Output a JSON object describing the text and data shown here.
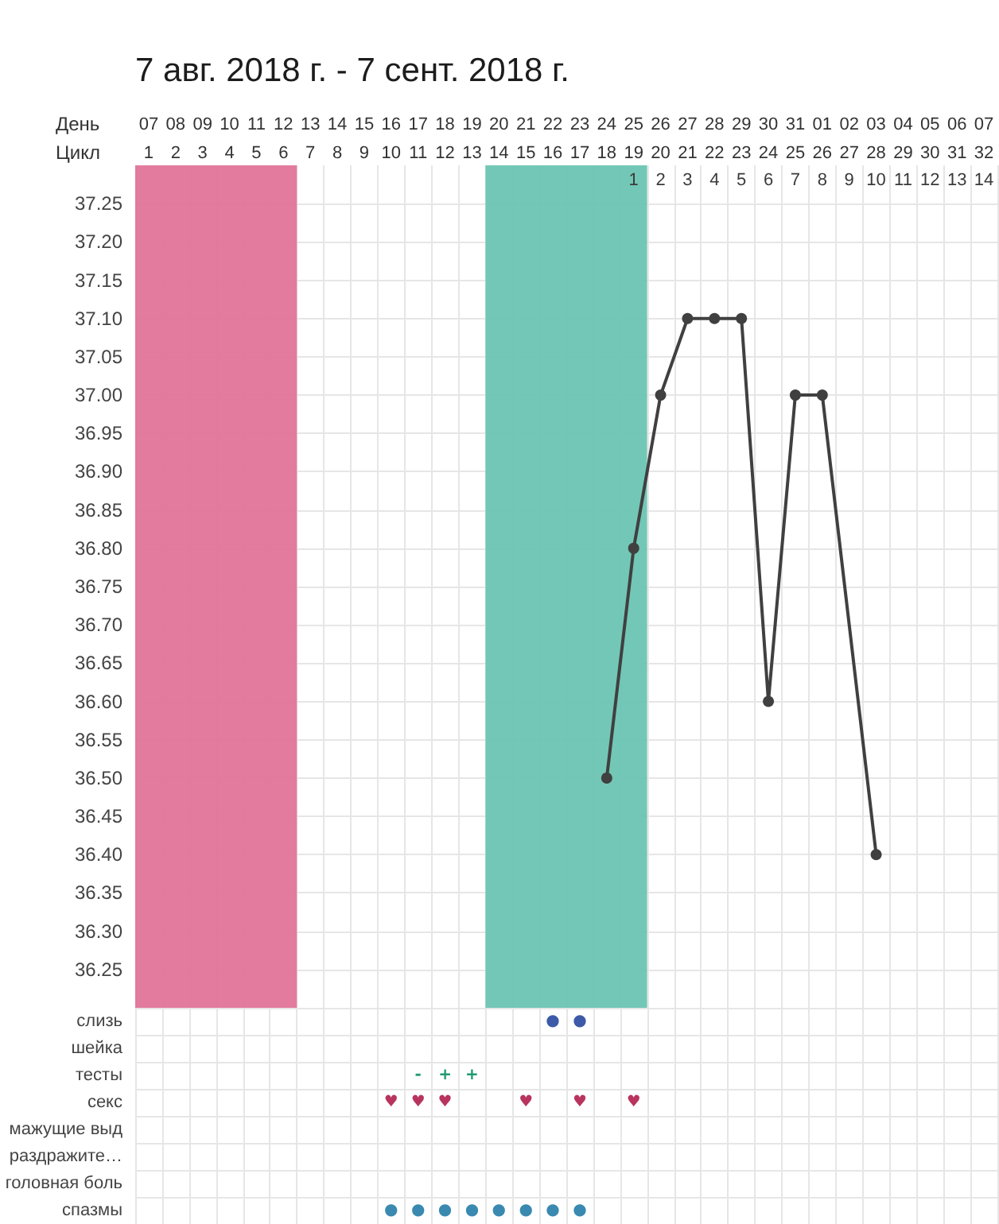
{
  "chart_data": [
    {
      "type": "line",
      "title": "7 авг. 2018 г. - 7 сент. 2018 г.",
      "xlabel": "День",
      "x2label": "Цикл",
      "categories": [
        "07",
        "08",
        "09",
        "10",
        "11",
        "12",
        "13",
        "14",
        "15",
        "16",
        "17",
        "18",
        "19",
        "20",
        "21",
        "22",
        "23",
        "24",
        "25",
        "26",
        "27",
        "28",
        "29",
        "30",
        "31",
        "01",
        "02",
        "03",
        "04",
        "05",
        "06",
        "07"
      ],
      "values": [
        null,
        null,
        null,
        null,
        null,
        null,
        null,
        null,
        null,
        null,
        null,
        null,
        null,
        null,
        null,
        null,
        null,
        36.5,
        36.8,
        37.0,
        37.1,
        37.1,
        37.1,
        36.6,
        37.0,
        37.0,
        null,
        36.4,
        null,
        null,
        null,
        null
      ],
      "color": "#404040",
      "marker": "circle",
      "line_style": "solid",
      "grid": true,
      "ylim": [
        36.2,
        37.3
      ],
      "yticks": [
        36.25,
        {
          "value": 36.3,
          "label": "36.30"
        },
        36.35,
        {
          "value": 36.4,
          "label": "36.40"
        },
        36.45,
        {
          "value": 36.5,
          "label": "36.50"
        },
        36.55,
        {
          "value": 36.6,
          "label": "36.60"
        },
        36.65,
        {
          "value": 36.7,
          "label": "36.70"
        },
        36.75,
        {
          "value": 36.8,
          "label": "36.80"
        },
        36.85,
        {
          "value": 36.9,
          "label": "36.90"
        },
        36.95,
        {
          "value": 37.0,
          "label": "37.00"
        },
        37.05,
        {
          "value": 37.1,
          "label": "37.10"
        },
        37.15,
        {
          "value": 37.2,
          "label": "37.20"
        },
        37.25
      ],
      "x2lim": [
        0.5,
        32.5
      ],
      "x2ticks": [
        1,
        2,
        3,
        4,
        5,
        6,
        7,
        8,
        9,
        10,
        11,
        12,
        13,
        14,
        15,
        16,
        17,
        18,
        {
          "value": 19,
          "label": "19\n1"
        },
        {
          "value": 20,
          "label": "20\n2"
        },
        {
          "value": 21,
          "label": "21\n3"
        },
        {
          "value": 22,
          "label": "22\n4"
        },
        {
          "value": 23,
          "label": "23\n5"
        },
        {
          "value": 24,
          "label": "24\n6"
        },
        {
          "value": 25,
          "label": "25\n7"
        },
        {
          "value": 26,
          "label": "26\n8"
        },
        {
          "value": 27,
          "label": "27\n9"
        },
        {
          "value": 28,
          "label": "28\n10"
        },
        {
          "value": 29,
          "label": "29\n11"
        },
        {
          "value": 30,
          "label": "30\n12"
        },
        {
          "value": 31,
          "label": "31\n13"
        },
        {
          "value": 32,
          "label": "32\n14"
        }
      ],
      "bands": [
        {
          "axis": "x2",
          "from": 0.5,
          "to": 6.5,
          "color": "#e07498"
        },
        {
          "axis": "x2",
          "from": 13.5,
          "to": 19.5,
          "color": "#6cc4b2"
        }
      ]
    },
    {
      "type": "heatmap",
      "tick_labels": "y",
      "grid": true,
      "categories": [
        null,
        null,
        null,
        null,
        null,
        null,
        null,
        null,
        null,
        null,
        null,
        null,
        null,
        null,
        null,
        null,
        null,
        null,
        null,
        null,
        null,
        null,
        null,
        null,
        null,
        null,
        null,
        null,
        null,
        null,
        null,
        null
      ],
      "y_categories": [
        "слизь",
        "шейка",
        "тесты",
        "секс",
        "мажущие выд",
        "раздражите…",
        "головная боль",
        "спазмы"
      ],
      "cells": [
        [
          null,
          null,
          null,
          null,
          null,
          null,
          null,
          null,
          null,
          null,
          null,
          null,
          null,
          null,
          null,
          "●",
          "●",
          null,
          null,
          null,
          null,
          null,
          null,
          null,
          null,
          null,
          null,
          null,
          null,
          null,
          null,
          null
        ],
        [
          null,
          null,
          null,
          null,
          null,
          null,
          null,
          null,
          null,
          null,
          null,
          null,
          null,
          null,
          null,
          null,
          null,
          null,
          null,
          null,
          null,
          null,
          null,
          null,
          null,
          null,
          null,
          null,
          null,
          null,
          null,
          null
        ],
        [
          null,
          null,
          null,
          null,
          null,
          null,
          null,
          null,
          null,
          null,
          "-",
          "+",
          "+",
          null,
          null,
          null,
          null,
          null,
          null,
          null,
          null,
          null,
          null,
          null,
          null,
          null,
          null,
          null,
          null,
          null,
          null,
          null
        ],
        [
          null,
          null,
          null,
          null,
          null,
          null,
          null,
          null,
          null,
          "♥",
          "♥",
          "♥",
          null,
          null,
          "♥",
          null,
          "♥",
          null,
          "♥",
          null,
          null,
          null,
          null,
          null,
          null,
          null,
          null,
          null,
          null,
          null,
          null,
          null
        ],
        [
          null,
          null,
          null,
          null,
          null,
          null,
          null,
          null,
          null,
          null,
          null,
          null,
          null,
          null,
          null,
          null,
          null,
          null,
          null,
          null,
          null,
          null,
          null,
          null,
          null,
          null,
          null,
          null,
          null,
          null,
          null,
          null
        ],
        [
          null,
          null,
          null,
          null,
          null,
          null,
          null,
          null,
          null,
          null,
          null,
          null,
          null,
          null,
          null,
          null,
          null,
          null,
          null,
          null,
          null,
          null,
          null,
          null,
          null,
          null,
          null,
          null,
          null,
          null,
          null,
          null
        ],
        [
          null,
          null,
          null,
          null,
          null,
          null,
          null,
          null,
          null,
          null,
          null,
          null,
          null,
          null,
          null,
          null,
          null,
          null,
          null,
          null,
          null,
          null,
          null,
          null,
          null,
          null,
          null,
          null,
          null,
          null,
          null,
          null
        ],
        [
          null,
          null,
          null,
          null,
          null,
          null,
          null,
          null,
          null,
          "●",
          "●",
          "●",
          "●",
          "●",
          "●",
          "●",
          "●",
          null,
          null,
          null,
          null,
          null,
          null,
          null,
          null,
          null,
          null,
          null,
          null,
          null,
          null,
          null
        ]
      ],
      "colors": [
        "#3d5aa8",
        "#3d5aa8",
        "#1f9b74",
        "#1f9b74",
        "#1f9b74",
        "#b8345f",
        "#b8345f",
        "#b8345f",
        "#b8345f",
        "#b8345f",
        "#b8345f",
        "#3a89b0",
        "#3a89b0",
        "#3a89b0",
        "#3a89b0",
        "#3a89b0",
        "#3a89b0",
        "#3a89b0",
        "#3a89b0"
      ]
    }
  ]
}
